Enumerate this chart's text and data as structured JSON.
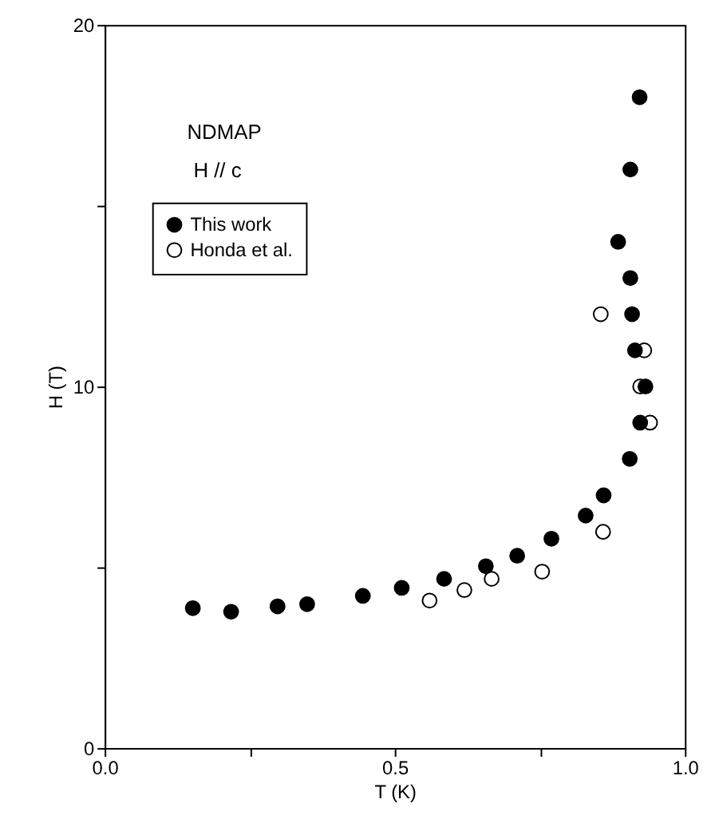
{
  "chart_data": {
    "type": "scatter",
    "xlabel": "T (K)",
    "ylabel": "H (T)",
    "annotations": [
      "NDMAP",
      "H // c"
    ],
    "xlim": [
      0,
      1
    ],
    "ylim": [
      0,
      20
    ],
    "xticks": [
      {
        "value": 0,
        "label": "0.0"
      },
      {
        "value": 0.25,
        "label": null
      },
      {
        "value": 0.5,
        "label": "0.5"
      },
      {
        "value": 0.75,
        "label": null
      },
      {
        "value": 1,
        "label": "1.0"
      }
    ],
    "yticks": [
      0,
      {
        "value": 5,
        "label": null
      },
      10,
      {
        "value": 15,
        "label": null
      },
      20
    ],
    "grid": false,
    "legend": "top left",
    "marker": "circle",
    "series": [
      {
        "name": "This work",
        "color": "#000000",
        "x": [
          0.152,
          0.218,
          0.298,
          0.349,
          0.445,
          0.512,
          0.585,
          0.657,
          0.711,
          0.77,
          0.829,
          0.86,
          0.905,
          0.923,
          0.932,
          0.914,
          0.909,
          0.906,
          0.885,
          0.906,
          0.922
        ],
        "values": [
          3.87,
          3.77,
          3.92,
          3.98,
          4.21,
          4.43,
          4.68,
          5.03,
          5.32,
          5.79,
          6.43,
          6.99,
          8.0,
          9.0,
          10.0,
          11.0,
          12.0,
          13.0,
          14.0,
          16.0,
          18.0
        ]
      },
      {
        "name": "Honda et al.",
        "color": "#ffffff",
        "x": [
          0.56,
          0.62,
          0.667,
          0.754,
          0.859,
          0.855,
          0.93,
          0.923,
          0.94
        ],
        "values": [
          4.08,
          4.37,
          4.68,
          4.88,
          5.98,
          12.0,
          11.0,
          10.0,
          9.0
        ]
      }
    ]
  }
}
